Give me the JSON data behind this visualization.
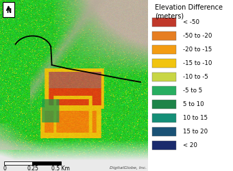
{
  "legend_labels": [
    "< -50",
    "-50 to -20",
    "-20 to -15",
    "-15 to -10",
    "-10 to -5",
    "-5 to 5",
    "5 to 10",
    "10 to 15",
    "15 to 20",
    "< 20"
  ],
  "legend_colors": [
    "#c0392b",
    "#e67e22",
    "#f39c12",
    "#f1c40f",
    "#c8d644",
    "#27ae60",
    "#1e8449",
    "#148f77",
    "#1a5276",
    "#1a2a6c"
  ],
  "background_color": "#ffffff",
  "credit": "DigitalGlobe, Inc.",
  "figsize": [
    3.4,
    2.5
  ],
  "dpi": 100,
  "legend_title_fontsize": 7.0,
  "legend_label_fontsize": 6.2
}
